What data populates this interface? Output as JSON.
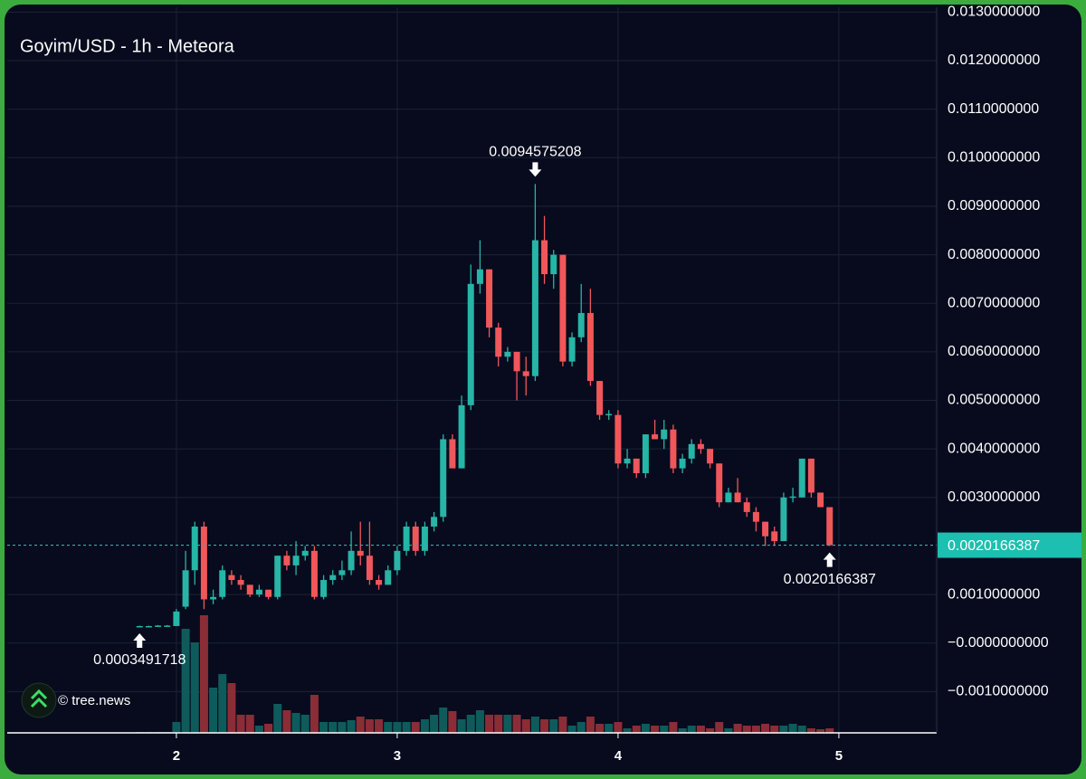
{
  "chart_data": {
    "type": "candlestick",
    "title": "Goyim/USD - 1h - Meteora",
    "watermark": "© tree.news",
    "x": [
      1.8333,
      1.875,
      1.9167,
      1.9583,
      2,
      2.0417,
      2.0833,
      2.125,
      2.1667,
      2.2083,
      2.25,
      2.2917,
      2.3333,
      2.375,
      2.4167,
      2.4583,
      2.5,
      2.5417,
      2.5833,
      2.625,
      2.6667,
      2.7083,
      2.75,
      2.7917,
      2.8333,
      2.875,
      2.9167,
      2.9583,
      3,
      3.0417,
      3.0833,
      3.125,
      3.1667,
      3.2083,
      3.25,
      3.2917,
      3.3333,
      3.375,
      3.4167,
      3.4583,
      3.5,
      3.5417,
      3.5833,
      3.625,
      3.6667,
      3.7083,
      3.75,
      3.7917,
      3.8333,
      3.875,
      3.9167,
      3.9583,
      4,
      4.0417,
      4.0833,
      4.125,
      4.1667,
      4.2083,
      4.25,
      4.2917,
      4.3333,
      4.375,
      4.4167,
      4.4583,
      4.5,
      4.5417,
      4.5833,
      4.625,
      4.6667,
      4.7083,
      4.75,
      4.7917,
      4.8333,
      4.875,
      4.9167,
      4.9583
    ],
    "open": [
      0.00035,
      0.00035,
      0.00035,
      0.00035,
      0.00035,
      0.00075,
      0.0015,
      0.0024,
      0.0009,
      0.00095,
      0.0014,
      0.0013,
      0.0012,
      0.001,
      0.0011,
      0.00095,
      0.0018,
      0.0016,
      0.0018,
      0.0019,
      0.00095,
      0.0013,
      0.0014,
      0.0015,
      0.0019,
      0.0018,
      0.0013,
      0.0012,
      0.0015,
      0.0019,
      0.0024,
      0.0019,
      0.0024,
      0.0026,
      0.0042,
      0.0036,
      0.0049,
      0.0074,
      0.0077,
      0.0065,
      0.0059,
      0.006,
      0.0056,
      0.0055,
      0.0083,
      0.0076,
      0.008,
      0.0058,
      0.0063,
      0.0068,
      0.0054,
      0.0047,
      0.0047,
      0.0037,
      0.0038,
      0.0035,
      0.0043,
      0.0042,
      0.0044,
      0.0036,
      0.0038,
      0.0041,
      0.004,
      0.0037,
      0.0029,
      0.0031,
      0.0029,
      0.0027,
      0.0025,
      0.0023,
      0.0021,
      0.003,
      0.003,
      0.0038,
      0.0031,
      0.0028
    ],
    "high": [
      0.00036,
      0.00036,
      0.00037,
      0.00037,
      0.0007,
      0.0019,
      0.0025,
      0.0025,
      0.0011,
      0.0016,
      0.0015,
      0.0014,
      0.0012,
      0.0012,
      0.0011,
      0.0018,
      0.0019,
      0.0021,
      0.002,
      0.002,
      0.0014,
      0.0015,
      0.0017,
      0.0023,
      0.0025,
      0.0025,
      0.0014,
      0.0016,
      0.002,
      0.0025,
      0.0025,
      0.0025,
      0.0027,
      0.0043,
      0.0043,
      0.0051,
      0.0078,
      0.0083,
      0.0077,
      0.0066,
      0.0061,
      0.006,
      0.0059,
      0.0094575208,
      0.0088,
      0.0081,
      0.008,
      0.0064,
      0.0074,
      0.0073,
      0.0054,
      0.0048,
      0.0048,
      0.004,
      0.0038,
      0.0043,
      0.0046,
      0.0046,
      0.0045,
      0.0039,
      0.0042,
      0.0042,
      0.004,
      0.0037,
      0.0032,
      0.0034,
      0.003,
      0.0028,
      0.0025,
      0.0024,
      0.0031,
      0.0032,
      0.0038,
      0.0038,
      0.0031,
      0.0028
    ],
    "low": [
      0.0003491718,
      0.00035,
      0.00035,
      0.00035,
      0.00035,
      0.0007,
      0.0012,
      0.0007,
      0.0008,
      0.0009,
      0.0012,
      0.0011,
      0.00095,
      0.00095,
      0.0009,
      0.0009,
      0.0015,
      0.0014,
      0.0017,
      0.0009,
      0.0009,
      0.0012,
      0.0013,
      0.0014,
      0.0016,
      0.0012,
      0.0011,
      0.0012,
      0.0014,
      0.0018,
      0.0018,
      0.0018,
      0.0023,
      0.0025,
      0.0036,
      0.0036,
      0.0048,
      0.0072,
      0.0063,
      0.0057,
      0.0058,
      0.005,
      0.0051,
      0.0054,
      0.0074,
      0.0073,
      0.0057,
      0.0057,
      0.0062,
      0.0053,
      0.0046,
      0.0046,
      0.0036,
      0.0036,
      0.0034,
      0.0034,
      0.0042,
      0.004,
      0.0035,
      0.0035,
      0.0037,
      0.0039,
      0.0036,
      0.0028,
      0.0029,
      0.0029,
      0.0026,
      0.0023,
      0.002,
      0.002,
      0.0021,
      0.0029,
      0.003,
      0.003,
      0.0028,
      0.002
    ],
    "close": [
      0.00035,
      0.00035,
      0.00036,
      0.00036,
      0.00065,
      0.0015,
      0.0024,
      0.0009,
      0.00095,
      0.0015,
      0.0013,
      0.0012,
      0.001,
      0.0011,
      0.00095,
      0.0018,
      0.0016,
      0.0018,
      0.0019,
      0.00095,
      0.0013,
      0.0014,
      0.0015,
      0.0019,
      0.0018,
      0.0013,
      0.0012,
      0.0015,
      0.0019,
      0.0024,
      0.0019,
      0.0024,
      0.0026,
      0.0042,
      0.0036,
      0.0049,
      0.0074,
      0.0077,
      0.0065,
      0.0059,
      0.006,
      0.0056,
      0.0055,
      0.0083,
      0.0076,
      0.008,
      0.0058,
      0.0063,
      0.0068,
      0.0054,
      0.0047,
      0.00472,
      0.0037,
      0.0038,
      0.0035,
      0.0043,
      0.0042,
      0.0044,
      0.0036,
      0.0038,
      0.0041,
      0.004,
      0.0037,
      0.0029,
      0.0031,
      0.0029,
      0.0027,
      0.0025,
      0.0022,
      0.0021,
      0.003,
      0.00302,
      0.0038,
      0.0031,
      0.0028,
      0.0020166387
    ],
    "volume": [
      1,
      1,
      1,
      1,
      12,
      115,
      100,
      130,
      50,
      65,
      55,
      20,
      20,
      8,
      10,
      32,
      25,
      22,
      20,
      42,
      12,
      12,
      12,
      14,
      18,
      15,
      15,
      12,
      12,
      12,
      12,
      15,
      20,
      28,
      24,
      15,
      20,
      25,
      20,
      20,
      20,
      20,
      15,
      18,
      15,
      15,
      18,
      8,
      12,
      18,
      10,
      10,
      12,
      5,
      8,
      10,
      8,
      8,
      12,
      5,
      8,
      8,
      5,
      12,
      5,
      10,
      8,
      8,
      10,
      8,
      8,
      10,
      8,
      5,
      4,
      5
    ],
    "up_color": "#26b5a6",
    "down_color": "#f0575a",
    "up_volume_color": "#0f5b5b",
    "down_volume_color": "#8a2d37",
    "xlim": [
      1.234,
      5.443
    ],
    "xticks": [
      2,
      3,
      4,
      5
    ],
    "ylim": [
      -0.00185,
      0.0131
    ],
    "yticks": [
      {
        "value": 0.013,
        "label": "0.0130000000"
      },
      {
        "value": 0.012,
        "label": "0.0120000000"
      },
      {
        "value": 0.011,
        "label": "0.0110000000"
      },
      {
        "value": 0.01,
        "label": "0.0100000000"
      },
      {
        "value": 0.009,
        "label": "0.0090000000"
      },
      {
        "value": 0.008,
        "label": "0.0080000000"
      },
      {
        "value": 0.007,
        "label": "0.0070000000"
      },
      {
        "value": 0.006,
        "label": "0.0060000000"
      },
      {
        "value": 0.005,
        "label": "0.0050000000"
      },
      {
        "value": 0.004,
        "label": "0.0040000000"
      },
      {
        "value": 0.003,
        "label": "0.0030000000"
      },
      {
        "value": 0.001,
        "label": "0.0010000000"
      },
      {
        "value": 0,
        "label": "−0.0000000000"
      },
      {
        "value": -0.001,
        "label": "−0.0010000000"
      }
    ],
    "grid": true,
    "last_price": {
      "value": 0.0020166387,
      "label": "0.0020166387"
    },
    "annotations": [
      {
        "text": "0.0094575208",
        "x": 3.625,
        "y": 0.0094575208,
        "position": "above"
      },
      {
        "text": "0.0003491718",
        "x": 1.8333,
        "y": 0.0003491718,
        "position": "below"
      },
      {
        "text": "0.0020166387",
        "x": 4.9583,
        "y": 0.0020166387,
        "position": "below"
      }
    ]
  }
}
